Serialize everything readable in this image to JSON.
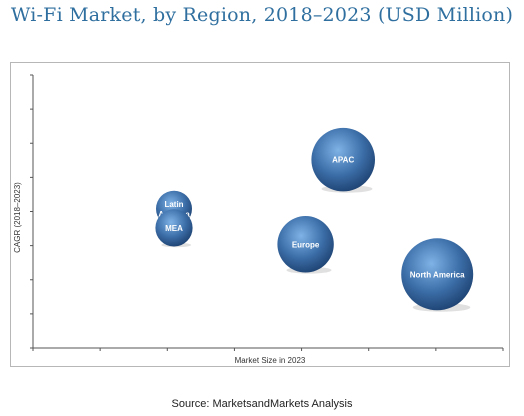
{
  "title": "Wi-Fi Market, by Region, 2018–2023 (USD Million)",
  "source": "Source: MarketsandMarkets Analysis",
  "colors": {
    "title": "#2f6f9f",
    "bubble_light": "#7fb3e6",
    "bubble_mid": "#3d6fa9",
    "bubble_dark": "#1b3f6e"
  },
  "chart_data": {
    "type": "scatter",
    "title": "",
    "xlabel": "Market Size in 2023",
    "ylabel": "CAGR (2018–2023)",
    "xlim": [
      0,
      10
    ],
    "ylim": [
      0,
      10
    ],
    "grid": false,
    "points": [
      {
        "label": "Latin America",
        "x": 3.0,
        "y": 5.1,
        "size": 3.0
      },
      {
        "label": "MEA",
        "x": 3.0,
        "y": 4.4,
        "size": 3.1
      },
      {
        "label": "Europe",
        "x": 5.8,
        "y": 3.8,
        "size": 4.7
      },
      {
        "label": "APAC",
        "x": 6.6,
        "y": 6.9,
        "size": 5.3
      },
      {
        "label": "North America",
        "x": 8.6,
        "y": 2.7,
        "size": 6.0
      }
    ]
  }
}
